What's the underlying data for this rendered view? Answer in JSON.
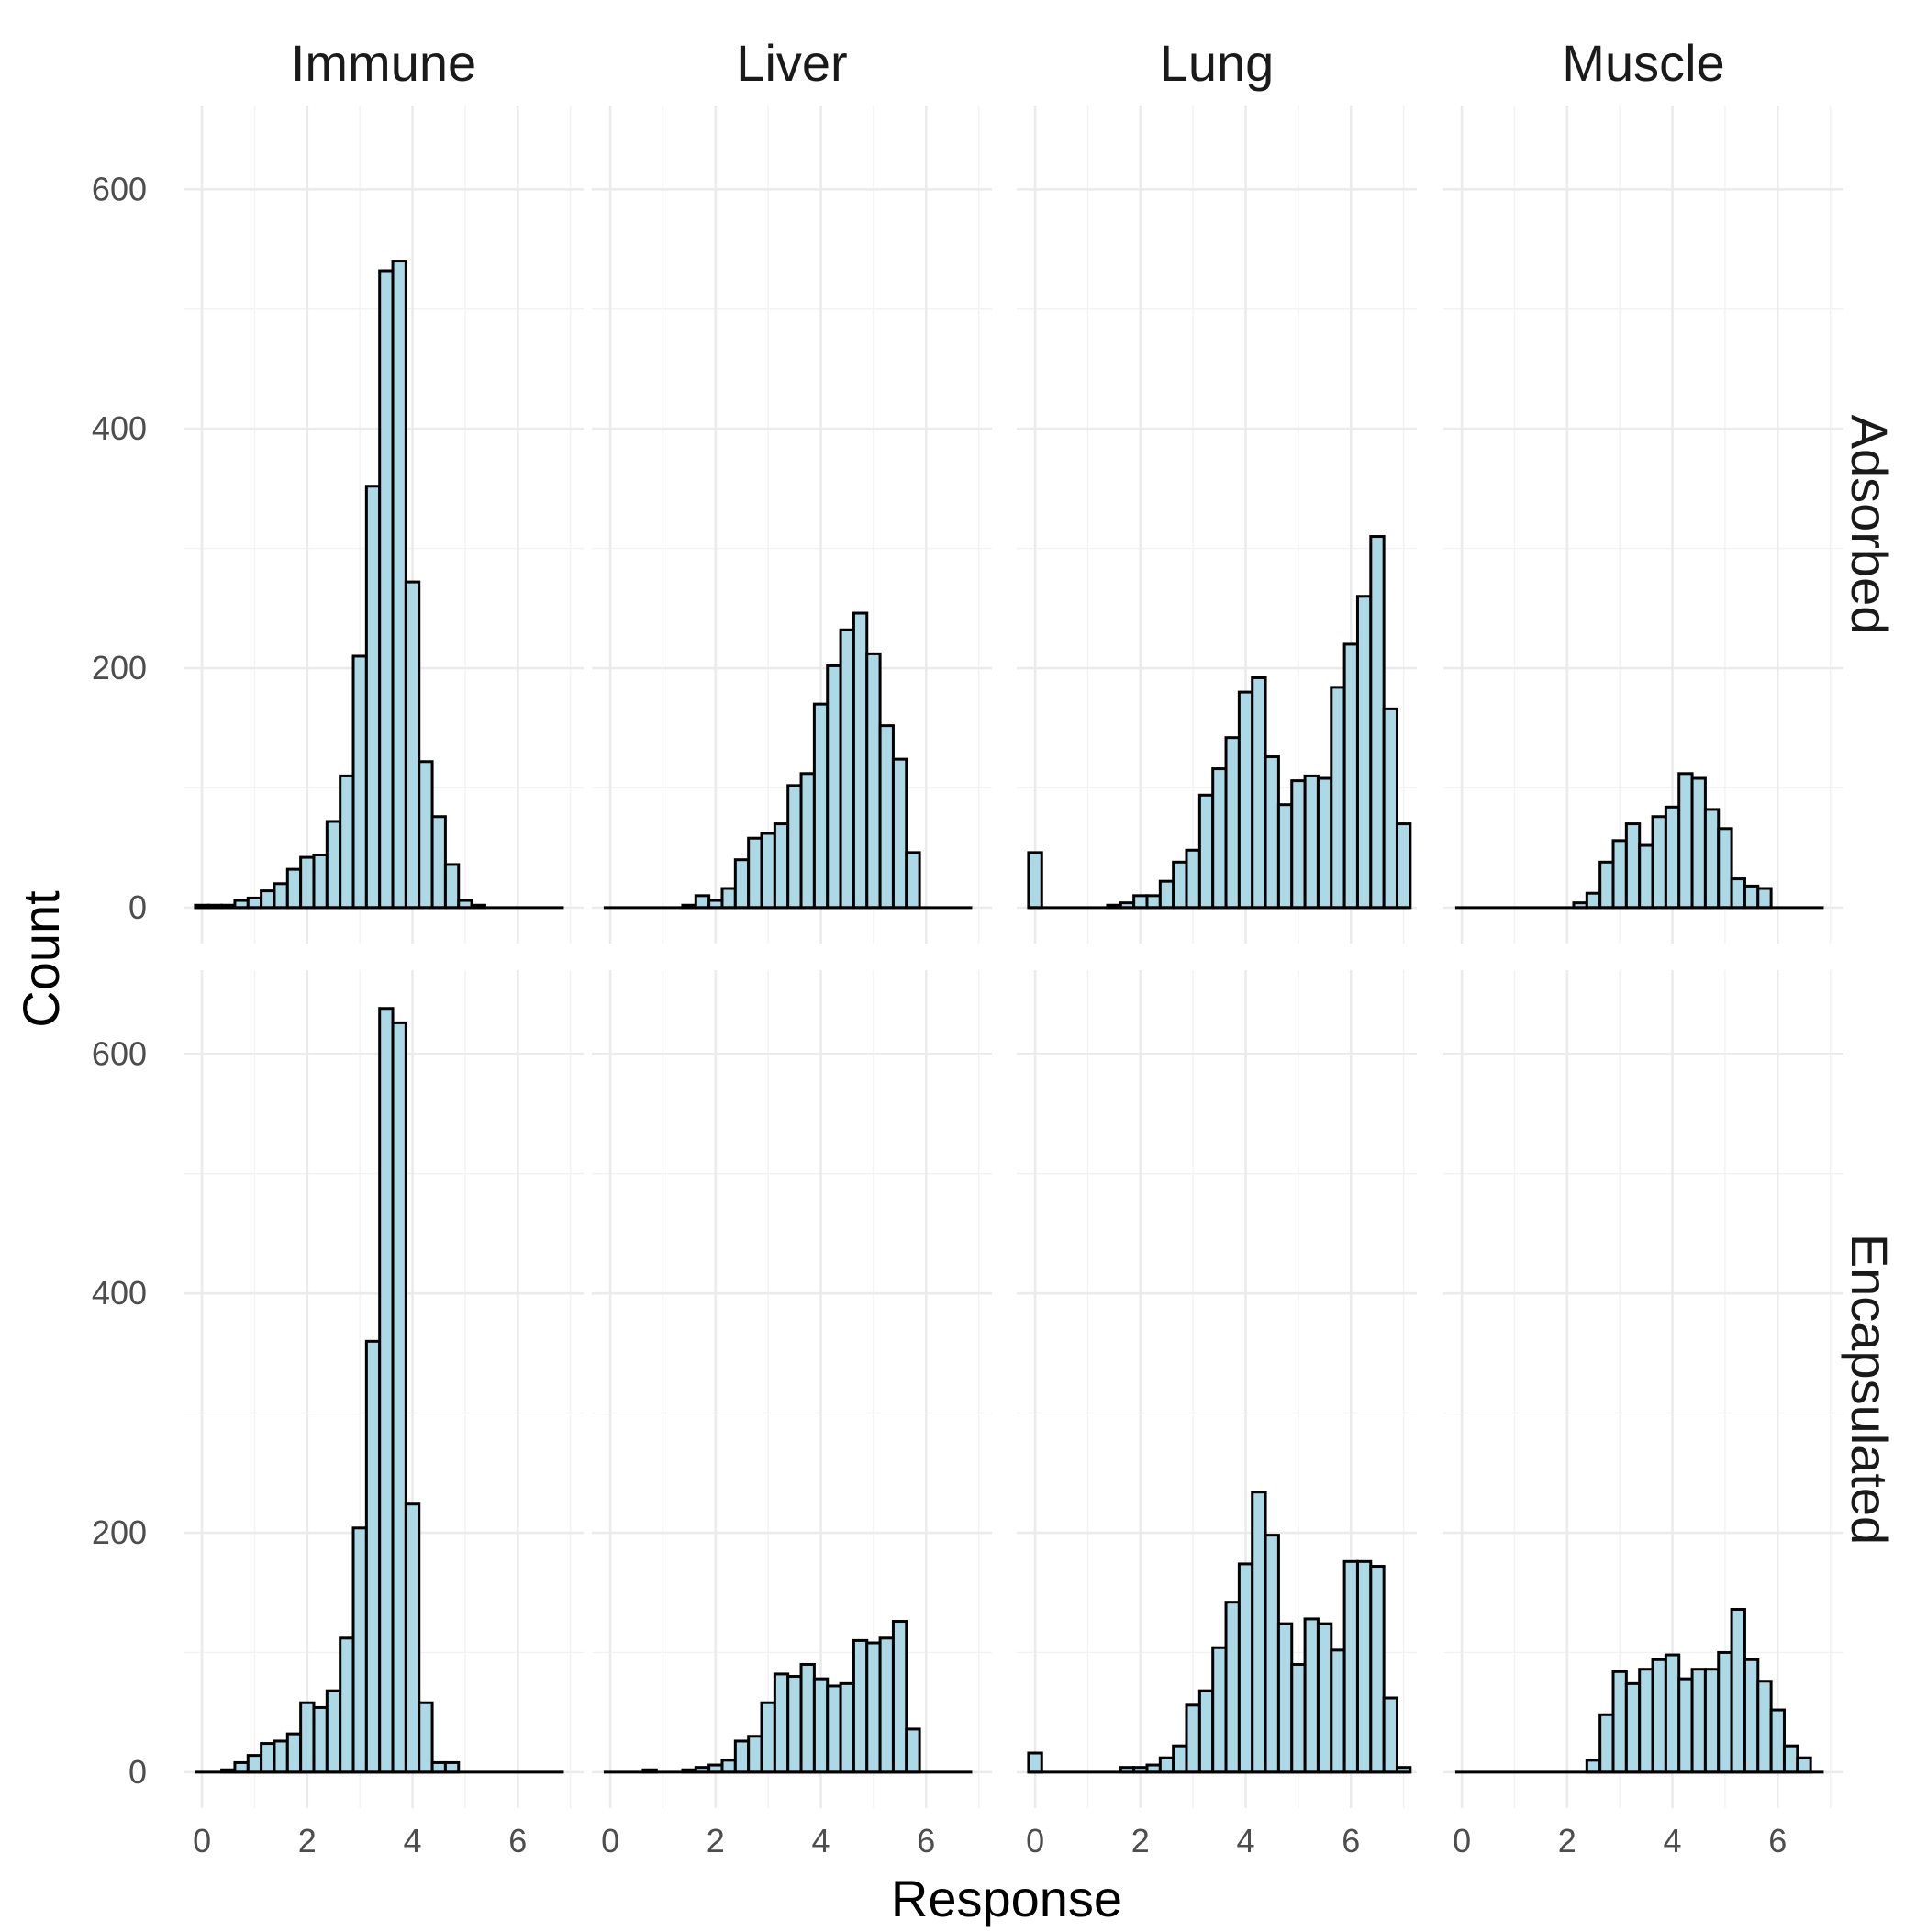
{
  "chart_data": {
    "type": "bar",
    "subtype": "faceted-histogram",
    "title": "",
    "xlabel": "Response",
    "ylabel": "Count",
    "xlim": [
      -0.35,
      7.25
    ],
    "ylim": [
      -30,
      670
    ],
    "x_ticks": [
      0,
      2,
      4,
      6
    ],
    "y_ticks": [
      0,
      200,
      400,
      600
    ],
    "grid": true,
    "bar_fill": "#add8e6",
    "bar_outline": "#000000",
    "bin_width": 0.25,
    "columns": [
      "Immune",
      "Liver",
      "Lung",
      "Muscle"
    ],
    "rows": [
      "Adsorbed",
      "Encapsulated"
    ],
    "panels": [
      {
        "row": "Adsorbed",
        "col": "Immune",
        "x_start": 0.0,
        "counts": [
          2,
          2,
          2,
          6,
          8,
          14,
          20,
          32,
          42,
          44,
          72,
          110,
          210,
          352,
          532,
          540,
          272,
          122,
          76,
          36,
          6,
          2,
          0,
          0,
          0,
          0,
          0,
          0
        ]
      },
      {
        "row": "Adsorbed",
        "col": "Liver",
        "x_start": 0.0,
        "counts": [
          0,
          0,
          0,
          0,
          0,
          0,
          2,
          10,
          6,
          16,
          40,
          58,
          62,
          70,
          102,
          112,
          170,
          202,
          232,
          246,
          212,
          152,
          124,
          46,
          0,
          0,
          0,
          0
        ]
      },
      {
        "row": "Adsorbed",
        "col": "Lung",
        "x_start": 0.0,
        "counts": [
          46,
          0,
          0,
          0,
          0,
          0,
          2,
          4,
          10,
          10,
          22,
          38,
          48,
          94,
          116,
          142,
          180,
          192,
          126,
          86,
          106,
          110,
          108,
          184,
          220,
          260,
          310,
          166,
          70
        ]
      },
      {
        "row": "Adsorbed",
        "col": "Muscle",
        "x_start": 0.0,
        "counts": [
          0,
          0,
          0,
          0,
          0,
          0,
          0,
          0,
          0,
          4,
          12,
          38,
          56,
          70,
          52,
          76,
          84,
          112,
          108,
          82,
          66,
          24,
          18,
          16,
          0,
          0,
          0,
          0
        ]
      },
      {
        "row": "Encapsulated",
        "col": "Immune",
        "x_start": 0.0,
        "counts": [
          0,
          0,
          2,
          8,
          14,
          24,
          26,
          32,
          58,
          54,
          68,
          112,
          204,
          360,
          638,
          626,
          224,
          58,
          8,
          8,
          0,
          0,
          0,
          0,
          0,
          0,
          0,
          0
        ]
      },
      {
        "row": "Encapsulated",
        "col": "Liver",
        "x_start": 0.0,
        "counts": [
          0,
          0,
          0,
          2,
          0,
          0,
          2,
          4,
          6,
          10,
          26,
          30,
          58,
          82,
          80,
          90,
          78,
          72,
          74,
          110,
          108,
          112,
          126,
          36,
          0,
          0,
          0,
          0
        ]
      },
      {
        "row": "Encapsulated",
        "col": "Lung",
        "x_start": 0.0,
        "counts": [
          16,
          0,
          0,
          0,
          0,
          0,
          0,
          4,
          4,
          6,
          12,
          22,
          56,
          68,
          104,
          142,
          174,
          234,
          198,
          124,
          90,
          128,
          124,
          102,
          176,
          176,
          172,
          62,
          4
        ]
      },
      {
        "row": "Encapsulated",
        "col": "Muscle",
        "x_start": 0.0,
        "counts": [
          0,
          0,
          0,
          0,
          0,
          0,
          0,
          0,
          0,
          0,
          10,
          48,
          84,
          74,
          86,
          94,
          98,
          78,
          86,
          86,
          100,
          136,
          94,
          76,
          52,
          22,
          12,
          0
        ]
      }
    ]
  }
}
